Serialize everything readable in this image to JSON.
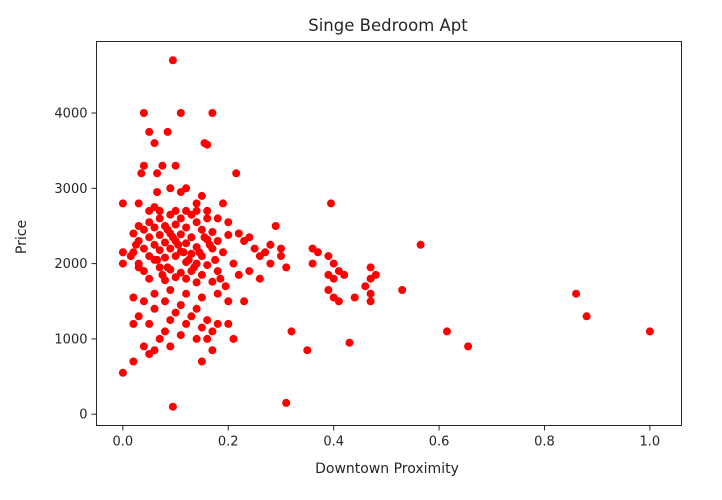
{
  "chart_data": {
    "type": "scatter",
    "title": "Singe Bedroom Apt",
    "xlabel": "Downtown Proximity",
    "ylabel": "Price",
    "xlim": [
      -0.05,
      1.06
    ],
    "ylim": [
      -150,
      4950
    ],
    "xticks": [
      0.0,
      0.2,
      0.4,
      0.6,
      0.8,
      1.0
    ],
    "xtick_labels": [
      "0.0",
      "0.2",
      "0.4",
      "0.6",
      "0.8",
      "1.0"
    ],
    "yticks": [
      0,
      1000,
      2000,
      3000,
      4000
    ],
    "ytick_labels": [
      "0",
      "1000",
      "2000",
      "3000",
      "4000"
    ],
    "grid": false,
    "marker_color": "#ff0000",
    "series": [
      {
        "points": [
          [
            0.095,
            4700
          ],
          [
            0.04,
            4000
          ],
          [
            0.11,
            4000
          ],
          [
            0.17,
            4000
          ],
          [
            0.05,
            3750
          ],
          [
            0.085,
            3750
          ],
          [
            0.06,
            3600
          ],
          [
            0.155,
            3600
          ],
          [
            0.16,
            3580
          ],
          [
            0.04,
            3300
          ],
          [
            0.075,
            3300
          ],
          [
            0.1,
            3300
          ],
          [
            0.065,
            3200
          ],
          [
            0.035,
            3200
          ],
          [
            0.215,
            3200
          ],
          [
            0.09,
            3000
          ],
          [
            0.12,
            3000
          ],
          [
            0.065,
            2950
          ],
          [
            0.11,
            2950
          ],
          [
            0.15,
            2900
          ],
          [
            0.0,
            2800
          ],
          [
            0.03,
            2800
          ],
          [
            0.14,
            2800
          ],
          [
            0.19,
            2800
          ],
          [
            0.395,
            2800
          ],
          [
            0.06,
            2750
          ],
          [
            0.1,
            2700
          ],
          [
            0.13,
            2650
          ],
          [
            0.16,
            2600
          ],
          [
            0.18,
            2600
          ],
          [
            0.2,
            2550
          ],
          [
            0.03,
            2500
          ],
          [
            0.05,
            2550
          ],
          [
            0.07,
            2600
          ],
          [
            0.09,
            2650
          ],
          [
            0.11,
            2600
          ],
          [
            0.14,
            2550
          ],
          [
            0.02,
            2400
          ],
          [
            0.04,
            2450
          ],
          [
            0.06,
            2480
          ],
          [
            0.08,
            2500
          ],
          [
            0.1,
            2520
          ],
          [
            0.12,
            2480
          ],
          [
            0.15,
            2450
          ],
          [
            0.17,
            2420
          ],
          [
            0.03,
            2300
          ],
          [
            0.05,
            2350
          ],
          [
            0.07,
            2380
          ],
          [
            0.09,
            2400
          ],
          [
            0.11,
            2390
          ],
          [
            0.13,
            2350
          ],
          [
            0.16,
            2320
          ],
          [
            0.18,
            2300
          ],
          [
            0.2,
            2380
          ],
          [
            0.04,
            2200
          ],
          [
            0.06,
            2250
          ],
          [
            0.08,
            2280
          ],
          [
            0.1,
            2300
          ],
          [
            0.12,
            2270
          ],
          [
            0.14,
            2220
          ],
          [
            0.17,
            2200
          ],
          [
            0.02,
            2150
          ],
          [
            0.05,
            2100
          ],
          [
            0.07,
            2180
          ],
          [
            0.09,
            2200
          ],
          [
            0.11,
            2160
          ],
          [
            0.13,
            2130
          ],
          [
            0.15,
            2100
          ],
          [
            0.19,
            2150
          ],
          [
            0.03,
            2000
          ],
          [
            0.06,
            2050
          ],
          [
            0.08,
            2080
          ],
          [
            0.1,
            2100
          ],
          [
            0.12,
            2020
          ],
          [
            0.14,
            2000
          ],
          [
            0.16,
            1980
          ],
          [
            0.04,
            1900
          ],
          [
            0.07,
            1950
          ],
          [
            0.09,
            1920
          ],
          [
            0.11,
            1880
          ],
          [
            0.13,
            1900
          ],
          [
            0.15,
            1850
          ],
          [
            0.18,
            1900
          ],
          [
            0.05,
            1800
          ],
          [
            0.08,
            1780
          ],
          [
            0.1,
            1820
          ],
          [
            0.12,
            1800
          ],
          [
            0.14,
            1750
          ],
          [
            0.17,
            1760
          ],
          [
            0.0,
            2150
          ],
          [
            0.0,
            2000
          ],
          [
            0.015,
            2100
          ],
          [
            0.025,
            2250
          ],
          [
            0.03,
            1950
          ],
          [
            0.22,
            2400
          ],
          [
            0.23,
            2300
          ],
          [
            0.24,
            2350
          ],
          [
            0.25,
            2200
          ],
          [
            0.26,
            2100
          ],
          [
            0.27,
            2150
          ],
          [
            0.28,
            2000
          ],
          [
            0.29,
            2500
          ],
          [
            0.3,
            2100
          ],
          [
            0.31,
            1950
          ],
          [
            0.21,
            2000
          ],
          [
            0.22,
            1850
          ],
          [
            0.24,
            1900
          ],
          [
            0.26,
            1800
          ],
          [
            0.28,
            2250
          ],
          [
            0.3,
            2200
          ],
          [
            0.36,
            2200
          ],
          [
            0.37,
            2150
          ],
          [
            0.39,
            2100
          ],
          [
            0.4,
            2000
          ],
          [
            0.41,
            1900
          ],
          [
            0.36,
            2000
          ],
          [
            0.39,
            1850
          ],
          [
            0.4,
            1800
          ],
          [
            0.42,
            1850
          ],
          [
            0.47,
            1950
          ],
          [
            0.47,
            1800
          ],
          [
            0.46,
            1700
          ],
          [
            0.48,
            1850
          ],
          [
            0.39,
            1650
          ],
          [
            0.4,
            1550
          ],
          [
            0.41,
            1500
          ],
          [
            0.44,
            1550
          ],
          [
            0.47,
            1500
          ],
          [
            0.47,
            1600
          ],
          [
            0.53,
            1650
          ],
          [
            0.565,
            2250
          ],
          [
            0.06,
            1600
          ],
          [
            0.09,
            1650
          ],
          [
            0.12,
            1600
          ],
          [
            0.15,
            1550
          ],
          [
            0.18,
            1600
          ],
          [
            0.2,
            1500
          ],
          [
            0.23,
            1500
          ],
          [
            0.08,
            1500
          ],
          [
            0.11,
            1450
          ],
          [
            0.14,
            1400
          ],
          [
            0.02,
            1550
          ],
          [
            0.04,
            1500
          ],
          [
            0.06,
            1400
          ],
          [
            0.1,
            1350
          ],
          [
            0.13,
            1300
          ],
          [
            0.16,
            1250
          ],
          [
            0.18,
            1200
          ],
          [
            0.03,
            1300
          ],
          [
            0.02,
            1200
          ],
          [
            0.05,
            1200
          ],
          [
            0.09,
            1250
          ],
          [
            0.12,
            1200
          ],
          [
            0.15,
            1150
          ],
          [
            0.17,
            1100
          ],
          [
            0.2,
            1200
          ],
          [
            0.08,
            1100
          ],
          [
            0.11,
            1050
          ],
          [
            0.14,
            1000
          ],
          [
            0.16,
            1000
          ],
          [
            0.21,
            1000
          ],
          [
            0.07,
            1000
          ],
          [
            0.04,
            900
          ],
          [
            0.06,
            850
          ],
          [
            0.09,
            900
          ],
          [
            0.17,
            850
          ],
          [
            0.15,
            700
          ],
          [
            0.02,
            700
          ],
          [
            0.05,
            800
          ],
          [
            0.0,
            550
          ],
          [
            0.32,
            1100
          ],
          [
            0.35,
            850
          ],
          [
            0.43,
            950
          ],
          [
            0.615,
            1100
          ],
          [
            0.655,
            900
          ],
          [
            0.86,
            1600
          ],
          [
            0.88,
            1300
          ],
          [
            1.0,
            1100
          ],
          [
            0.095,
            100
          ],
          [
            0.31,
            150
          ],
          [
            0.05,
            2700
          ],
          [
            0.07,
            2700
          ],
          [
            0.12,
            2700
          ],
          [
            0.14,
            2700
          ],
          [
            0.16,
            2700
          ],
          [
            0.085,
            2450
          ],
          [
            0.095,
            2350
          ],
          [
            0.105,
            2250
          ],
          [
            0.115,
            2150
          ],
          [
            0.125,
            2050
          ],
          [
            0.065,
            2050
          ],
          [
            0.075,
            1850
          ],
          [
            0.085,
            1950
          ],
          [
            0.135,
            1950
          ],
          [
            0.145,
            2150
          ],
          [
            0.155,
            2350
          ],
          [
            0.165,
            2250
          ],
          [
            0.175,
            2050
          ],
          [
            0.185,
            1800
          ],
          [
            0.195,
            1700
          ]
        ]
      }
    ]
  }
}
